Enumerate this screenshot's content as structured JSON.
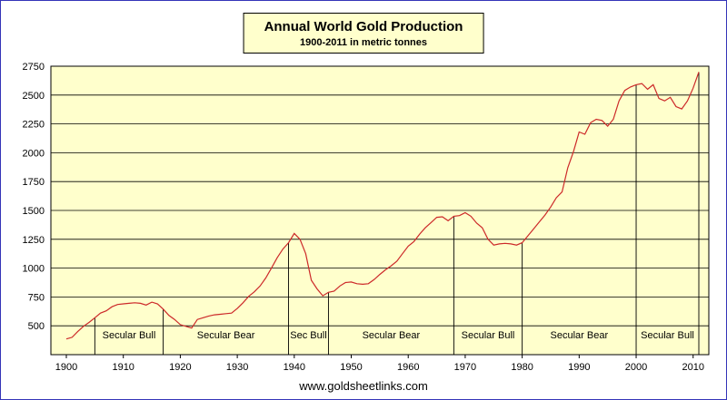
{
  "header": {
    "title": "Annual World Gold Production",
    "subtitle": "1900-2011 in metric tonnes"
  },
  "footer": {
    "text": "www.goldsheetlinks.com"
  },
  "chart_data": {
    "type": "line",
    "title": "Annual World Gold Production",
    "subtitle": "1900-2011 in metric tonnes",
    "ylabel": "metric tonnes",
    "x_start": 1900,
    "x_end": 2011,
    "ylim": [
      250,
      2750
    ],
    "y_ticks": [
      500,
      750,
      1000,
      1250,
      1500,
      1750,
      2000,
      2250,
      2500,
      2750
    ],
    "x_ticks": [
      1900,
      1910,
      1920,
      1930,
      1940,
      1950,
      1960,
      1970,
      1980,
      1990,
      2000,
      2010
    ],
    "grid": "horizontal",
    "legend": "none",
    "plot_bg": "#ffffcc",
    "line_color": "#cc2929",
    "series": [
      {
        "name": "World gold production (metric tonnes)",
        "x_start": 1900,
        "values": [
          386,
          400,
          450,
          495,
          530,
          570,
          610,
          630,
          665,
          685,
          690,
          695,
          700,
          695,
          680,
          705,
          690,
          645,
          590,
          555,
          510,
          495,
          480,
          555,
          570,
          585,
          595,
          600,
          605,
          610,
          650,
          700,
          755,
          795,
          845,
          915,
          1000,
          1090,
          1165,
          1220,
          1300,
          1250,
          1125,
          895,
          820,
          760,
          790,
          800,
          845,
          875,
          880,
          865,
          860,
          865,
          900,
          945,
          985,
          1020,
          1060,
          1125,
          1190,
          1230,
          1295,
          1350,
          1395,
          1440,
          1445,
          1410,
          1450,
          1455,
          1480,
          1450,
          1390,
          1350,
          1250,
          1200,
          1210,
          1215,
          1210,
          1200,
          1220,
          1280,
          1340,
          1400,
          1460,
          1530,
          1610,
          1660,
          1870,
          2010,
          2180,
          2160,
          2260,
          2290,
          2280,
          2230,
          2290,
          2450,
          2540,
          2570,
          2590,
          2600,
          2550,
          2590,
          2470,
          2450,
          2480,
          2400,
          2380,
          2450,
          2560,
          2700
        ]
      }
    ],
    "divider_years": [
      1905,
      1917,
      1939,
      1946,
      1968,
      1980,
      2000,
      2011
    ],
    "periods": [
      {
        "label": "Secular Bull",
        "from": 1905,
        "to": 1917
      },
      {
        "label": "Secular Bear",
        "from": 1917,
        "to": 1939
      },
      {
        "label": "Sec Bull",
        "from": 1939,
        "to": 1946
      },
      {
        "label": "Secular Bear",
        "from": 1946,
        "to": 1968
      },
      {
        "label": "Secular Bull",
        "from": 1968,
        "to": 1980
      },
      {
        "label": "Secular Bear",
        "from": 1980,
        "to": 2000
      },
      {
        "label": "Secular Bull",
        "from": 2000,
        "to": 2011
      }
    ]
  }
}
